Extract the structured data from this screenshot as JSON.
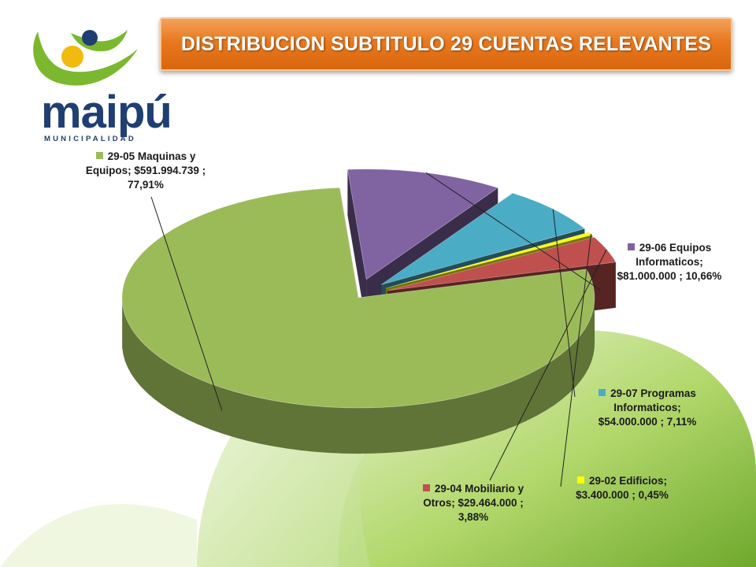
{
  "header": {
    "title": "DISTRIBUCION SUBTITULO 29 CUENTAS RELEVANTES"
  },
  "logo": {
    "word": "maipú",
    "subtitle": "MUNICIPALIDAD"
  },
  "colors": {
    "title_bg": "#e8781e",
    "maquinas": "#9bbb59",
    "equipos_informaticos": "#8064a2",
    "programas": "#4bacc6",
    "edificios": "#ffff00",
    "mobiliario": "#c0504d",
    "logo_blue": "#1f3f73",
    "logo_green": "#7cb82f",
    "logo_yellow": "#f2b90f"
  },
  "chart_data": {
    "type": "pie",
    "title": "DISTRIBUCION SUBTITULO 29 CUENTAS RELEVANTES",
    "style": "3d-exploded",
    "legend": "labels-with-leader-lines",
    "slices": [
      {
        "key": "maquinas",
        "name": "29-05 Maquinas y Equipos",
        "value": 591994739,
        "percent": 77.91,
        "label_lines": [
          "29-05 Maquinas y",
          "Equipos;  $591.994.739 ;",
          "77,91%"
        ]
      },
      {
        "key": "equipos_informaticos",
        "name": "29-06 Equipos Informaticos",
        "value": 81000000,
        "percent": 10.66,
        "label_lines": [
          "29-06 Equipos",
          "Informaticos;",
          "$81.000.000 ; 10,66%"
        ]
      },
      {
        "key": "programas",
        "name": "29-07 Programas Informaticos",
        "value": 54000000,
        "percent": 7.11,
        "label_lines": [
          "29-07 Programas",
          "Informaticos;",
          "$54.000.000 ; 7,11%"
        ]
      },
      {
        "key": "edificios",
        "name": "29-02 Edificios",
        "value": 3400000,
        "percent": 0.45,
        "label_lines": [
          "29-02 Edificios;",
          "$3.400.000 ; 0,45%"
        ]
      },
      {
        "key": "mobiliario",
        "name": "29-04 Mobiliario y Otros",
        "value": 29464000,
        "percent": 3.88,
        "label_lines": [
          "29-04 Mobiliario y",
          "Otros;  $29.464.000 ;",
          "3,88%"
        ]
      }
    ]
  }
}
